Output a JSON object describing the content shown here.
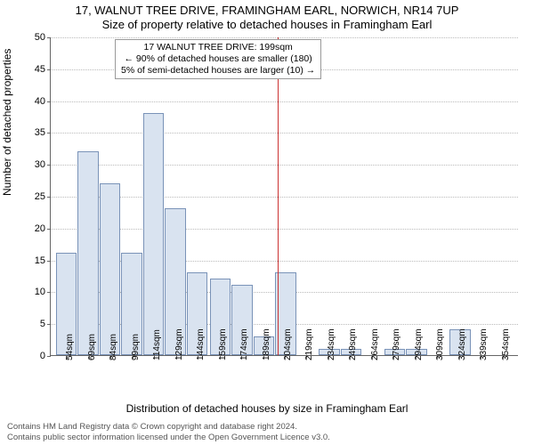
{
  "title_line1": "17, WALNUT TREE DRIVE, FRAMINGHAM EARL, NORWICH, NR14 7UP",
  "title_line2": "Size of property relative to detached houses in Framingham Earl",
  "ylabel": "Number of detached properties",
  "xlabel": "Distribution of detached houses by size in Framingham Earl",
  "footer_line1": "Contains HM Land Registry data © Crown copyright and database right 2024.",
  "footer_line2": "Contains public sector information licensed under the Open Government Licence v3.0.",
  "chart": {
    "type": "histogram",
    "ylim": [
      0,
      50
    ],
    "ytick_step": 5,
    "xtick_step": 15,
    "xtick_start": 54,
    "xtick_count": 21,
    "xtick_unit": "sqm",
    "bar_fill": "#d9e3f0",
    "bar_stroke": "#7a93b8",
    "grid_color": "#bbbbbb",
    "background": "#ffffff",
    "marker_line_color": "#cc3333",
    "marker_x_value": 199,
    "info_box": {
      "line1": "17 WALNUT TREE DRIVE: 199sqm",
      "line2": "← 90% of detached houses are smaller (180)",
      "line3": "5% of semi-detached houses are larger (10) →"
    },
    "bars": [
      {
        "x": 54,
        "count": 16
      },
      {
        "x": 69,
        "count": 32
      },
      {
        "x": 84,
        "count": 27
      },
      {
        "x": 99,
        "count": 16
      },
      {
        "x": 114,
        "count": 38
      },
      {
        "x": 129,
        "count": 23
      },
      {
        "x": 144,
        "count": 13
      },
      {
        "x": 160,
        "count": 12
      },
      {
        "x": 175,
        "count": 11
      },
      {
        "x": 190,
        "count": 3
      },
      {
        "x": 205,
        "count": 13
      },
      {
        "x": 220,
        "count": 0
      },
      {
        "x": 235,
        "count": 1
      },
      {
        "x": 250,
        "count": 1
      },
      {
        "x": 265,
        "count": 0
      },
      {
        "x": 280,
        "count": 1
      },
      {
        "x": 295,
        "count": 1
      },
      {
        "x": 310,
        "count": 0
      },
      {
        "x": 325,
        "count": 4
      },
      {
        "x": 340,
        "count": 0
      },
      {
        "x": 355,
        "count": 0
      }
    ]
  }
}
